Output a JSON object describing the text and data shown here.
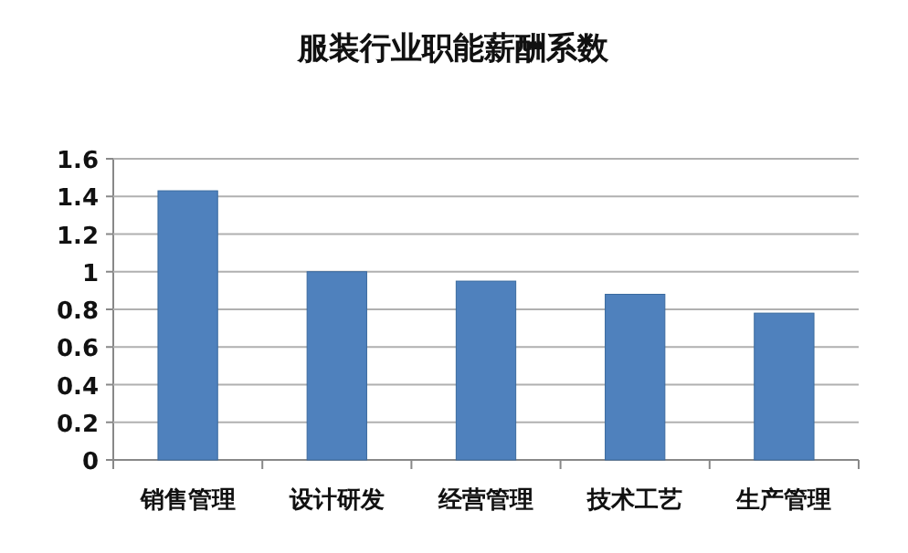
{
  "chart_data": {
    "type": "bar",
    "title": "服装行业职能薪酬系数",
    "categories": [
      "销售管理",
      "设计研发",
      "经营管理",
      "技术工艺",
      "生产管理"
    ],
    "values": [
      1.43,
      1.0,
      0.95,
      0.88,
      0.78
    ],
    "color": "#4f81bd",
    "ylim": [
      0,
      1.6
    ],
    "yticks": [
      0,
      0.2,
      0.4,
      0.6,
      0.8,
      1,
      1.2,
      1.4,
      1.6
    ],
    "grid": "y"
  }
}
